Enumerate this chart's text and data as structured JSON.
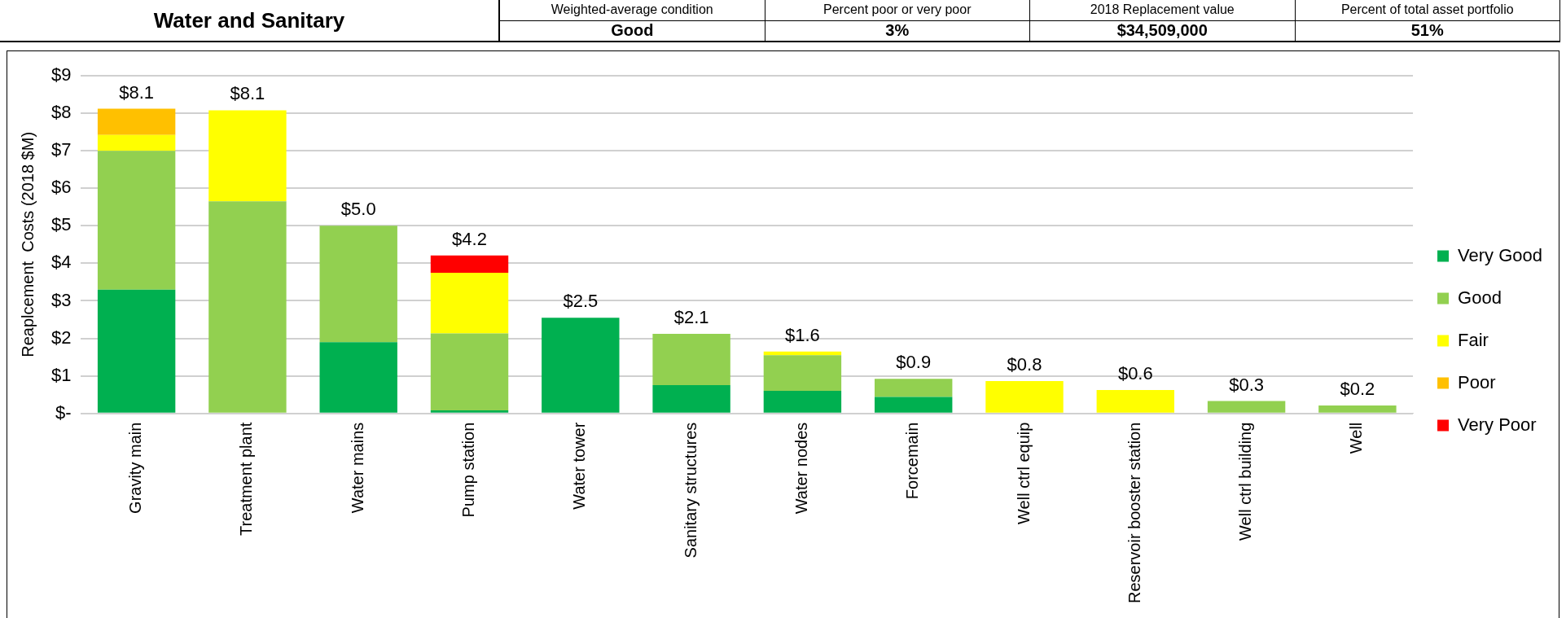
{
  "chart_data": [
    {
      "type": "other",
      "title": "Water and Sanitary",
      "annotations": [
        "Weighted-average condition",
        "Good",
        "Percent poor or very poor",
        "3%",
        "2018 Replacement value",
        "$34,509,000",
        "Percent of total asset portfolio",
        "51%"
      ]
    },
    {
      "type": "bar",
      "stacked": true,
      "ylabel": "Reaplcement  Costs (2018 $M)",
      "categories": [
        "Gravity main",
        "Treatment plant",
        "Water mains",
        "Pump station",
        "Water tower",
        "Sanitary structures",
        "Water nodes",
        "Forcemain",
        "Well ctrl equip",
        "Reservoir booster station",
        "Well ctrl building",
        "Well"
      ],
      "series": [
        {
          "name": "Very Good",
          "color": "#00b050",
          "values": [
            3.3,
            0,
            1.9,
            0.08,
            2.55,
            0.75,
            0.6,
            0.44,
            0,
            0,
            0,
            0
          ]
        },
        {
          "name": "Good",
          "color": "#92d050",
          "values": [
            3.7,
            5.65,
            3.1,
            2.05,
            0,
            1.37,
            0.95,
            0.48,
            0,
            0,
            0.33,
            0.21
          ]
        },
        {
          "name": "Fair",
          "color": "#ffff00",
          "values": [
            0.42,
            2.43,
            0,
            1.62,
            0,
            0,
            0.1,
            0,
            0.86,
            0.62,
            0,
            0
          ]
        },
        {
          "name": "Poor",
          "color": "#ffc000",
          "values": [
            0.7,
            0,
            0,
            0,
            0,
            0,
            0,
            0,
            0,
            0,
            0,
            0
          ]
        },
        {
          "name": "Very Poor",
          "color": "#ff0000",
          "values": [
            0,
            0,
            0,
            0.46,
            0,
            0,
            0,
            0,
            0,
            0,
            0,
            0
          ]
        }
      ],
      "totals": [
        "$8.1",
        "$8.1",
        "$5.0",
        "$4.2",
        "$2.5",
        "$2.1",
        "$1.6",
        "$0.9",
        "$0.8",
        "$0.6",
        "$0.3",
        "$0.2"
      ],
      "ylim": [
        0,
        9
      ],
      "yticks": [
        {
          "value": 0,
          "label": "$-"
        },
        {
          "value": 1,
          "label": "$1"
        },
        {
          "value": 2,
          "label": "$2"
        },
        {
          "value": 3,
          "label": "$3"
        },
        {
          "value": 4,
          "label": "$4"
        },
        {
          "value": 5,
          "label": "$5"
        },
        {
          "value": 6,
          "label": "$6"
        },
        {
          "value": 7,
          "label": "$7"
        },
        {
          "value": 8,
          "label": "$8"
        },
        {
          "value": 9,
          "label": "$9"
        }
      ],
      "grid": "y",
      "legend": "right"
    }
  ]
}
